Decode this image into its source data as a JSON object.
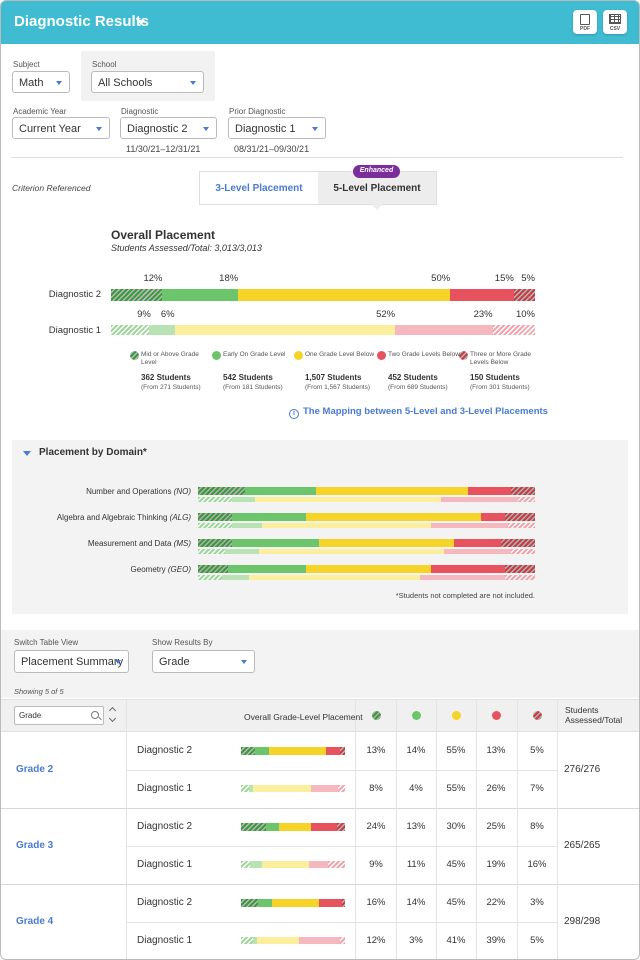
{
  "header": {
    "title": "Diagnostic Results",
    "pdf_label": "PDF",
    "csv_label": "CSV"
  },
  "filters": {
    "subject": {
      "label": "Subject",
      "value": "Math"
    },
    "school": {
      "label": "School",
      "value": "All Schools"
    },
    "academic_year": {
      "label": "Academic Year",
      "value": "Current Year"
    },
    "diagnostic": {
      "label": "Diagnostic",
      "value": "Diagnostic 2",
      "range": "11/30/21–12/31/21"
    },
    "prior_diagnostic": {
      "label": "Prior Diagnostic",
      "value": "Diagnostic 1",
      "range": "08/31/21–09/30/21"
    }
  },
  "criterion_label": "Criterion Referenced",
  "placement_tabs": {
    "three_level": "3-Level Placement",
    "five_level": "5-Level Placement",
    "enhanced_badge": "Enhanced"
  },
  "colors": {
    "mid_above": "#3c9a3c",
    "early_on": "#6cc56a",
    "one_below": "#f5d327",
    "two_below": "#e8525e",
    "three_below": "#c83d44",
    "mid_above_light": "#9fd69c",
    "early_on_light": "#b9e3b4",
    "one_below_light": "#fbef9d",
    "two_below_light": "#f5b8bf",
    "three_below_light": "#f0a4ac",
    "accent": "#4a7bd0",
    "header_bg": "#3fbcd1",
    "enhanced_bg": "#7b2d9c"
  },
  "overall": {
    "title": "Overall Placement",
    "subtitle": "Students Assessed/Total: 3,013/3,013",
    "rows": [
      {
        "label": "Diagnostic 2",
        "percents": [
          "12%",
          "18%",
          "50%",
          "15%",
          "5%"
        ]
      },
      {
        "label": "Diagnostic 1",
        "percents": [
          "9%",
          "6%",
          "52%",
          "23%",
          "10%"
        ]
      }
    ]
  },
  "chart_data": [
    {
      "type": "bar",
      "title": "Overall Placement",
      "orientation": "horizontal-stacked-100",
      "categories": [
        "Diagnostic 2",
        "Diagnostic 1"
      ],
      "series": [
        {
          "name": "Mid or Above Grade Level",
          "values": [
            12,
            9
          ]
        },
        {
          "name": "Early On Grade Level",
          "values": [
            18,
            6
          ]
        },
        {
          "name": "One Grade Level Below",
          "values": [
            50,
            52
          ]
        },
        {
          "name": "Two Grade Levels Below",
          "values": [
            15,
            23
          ]
        },
        {
          "name": "Three or More Grade Levels Below",
          "values": [
            5,
            10
          ]
        }
      ]
    },
    {
      "type": "bar",
      "title": "Placement by Domain*",
      "orientation": "horizontal-stacked-100",
      "categories": [
        "Number and Operations (NO) - Diagnostic 2",
        "Number and Operations (NO) - Diagnostic 1",
        "Algebra and Algebraic Thinking (ALG) - Diagnostic 2",
        "Algebra and Algebraic Thinking (ALG) - Diagnostic 1",
        "Measurement and Data (MS) - Diagnostic 2",
        "Measurement and Data (MS) - Diagnostic 1",
        "Geometry (GEO) - Diagnostic 2",
        "Geometry (GEO) - Diagnostic 1"
      ],
      "series": [
        {
          "name": "Mid or Above Grade Level",
          "values": [
            14,
            10,
            10,
            10,
            10,
            8,
            9,
            7
          ]
        },
        {
          "name": "Early On Grade Level",
          "values": [
            21,
            7,
            22,
            9,
            26,
            10,
            23,
            8
          ]
        },
        {
          "name": "One Grade Level Below",
          "values": [
            45,
            55,
            52,
            50,
            40,
            55,
            37,
            51
          ]
        },
        {
          "name": "Two Grade Levels Below",
          "values": [
            13,
            23,
            7,
            23,
            14,
            20,
            22,
            25
          ]
        },
        {
          "name": "Three or More Grade Levels Below",
          "values": [
            7,
            5,
            9,
            8,
            10,
            7,
            9,
            9
          ]
        }
      ]
    }
  ],
  "legend": [
    {
      "label": "Mid or Above Grade Level",
      "count": "362 Students",
      "from": "(From 271 Students)",
      "color_key": "mid_above"
    },
    {
      "label": "Early On Grade Level",
      "count": "542 Students",
      "from": "(From 181 Students)",
      "color_key": "early_on"
    },
    {
      "label": "One Grade Level Below",
      "count": "1,507 Students",
      "from": "(From 1,567 Students)",
      "color_key": "one_below"
    },
    {
      "label": "Two Grade Levels Below",
      "count": "452 Students",
      "from": "(From 689 Students)",
      "color_key": "two_below"
    },
    {
      "label": "Three or More Grade Levels Below",
      "count": "150 Students",
      "from": "(From 301 Students)",
      "color_key": "three_below"
    }
  ],
  "mapping_link": "The Mapping between 5-Level and 3-Level Placements",
  "domain": {
    "title": "Placement by Domain*",
    "items": [
      {
        "name": "Number and Operations",
        "code": "(NO)"
      },
      {
        "name": "Algebra and Algebraic Thinking",
        "code": "(ALG)"
      },
      {
        "name": "Measurement and Data",
        "code": "(MS)"
      },
      {
        "name": "Geometry",
        "code": "(GEO)"
      }
    ],
    "note": "*Students not completed are not included."
  },
  "table_controls": {
    "switch_view": {
      "label": "Switch Table View",
      "value": "Placement Summary"
    },
    "show_by": {
      "label": "Show Results By",
      "value": "Grade"
    },
    "showing": "Showing 5 of 5"
  },
  "table": {
    "search_value": "Grade",
    "col_overall": "Overall Grade-Level Placement",
    "col_assessed_1": "Students",
    "col_assessed_2": "Assessed/Total",
    "grades": [
      {
        "name": "Grade 2",
        "assessed": "276/276",
        "rows": [
          {
            "diag": "Diagnostic 2",
            "cells": [
              "13%",
              "14%",
              "55%",
              "13%",
              "5%"
            ],
            "values": [
              13,
              14,
              55,
              13,
              5
            ]
          },
          {
            "diag": "Diagnostic 1",
            "cells": [
              "8%",
              "4%",
              "55%",
              "26%",
              "7%"
            ],
            "values": [
              8,
              4,
              55,
              26,
              7
            ]
          }
        ]
      },
      {
        "name": "Grade 3",
        "assessed": "265/265",
        "rows": [
          {
            "diag": "Diagnostic 2",
            "cells": [
              "24%",
              "13%",
              "30%",
              "25%",
              "8%"
            ],
            "values": [
              24,
              13,
              30,
              25,
              8
            ]
          },
          {
            "diag": "Diagnostic 1",
            "cells": [
              "9%",
              "11%",
              "45%",
              "19%",
              "16%"
            ],
            "values": [
              9,
              11,
              45,
              19,
              16
            ]
          }
        ]
      },
      {
        "name": "Grade 4",
        "assessed": "298/298",
        "rows": [
          {
            "diag": "Diagnostic 2",
            "cells": [
              "16%",
              "14%",
              "45%",
              "22%",
              "3%"
            ],
            "values": [
              16,
              14,
              45,
              22,
              3
            ]
          },
          {
            "diag": "Diagnostic 1",
            "cells": [
              "12%",
              "3%",
              "41%",
              "39%",
              "5%"
            ],
            "values": [
              12,
              3,
              41,
              39,
              5
            ]
          }
        ]
      }
    ]
  }
}
